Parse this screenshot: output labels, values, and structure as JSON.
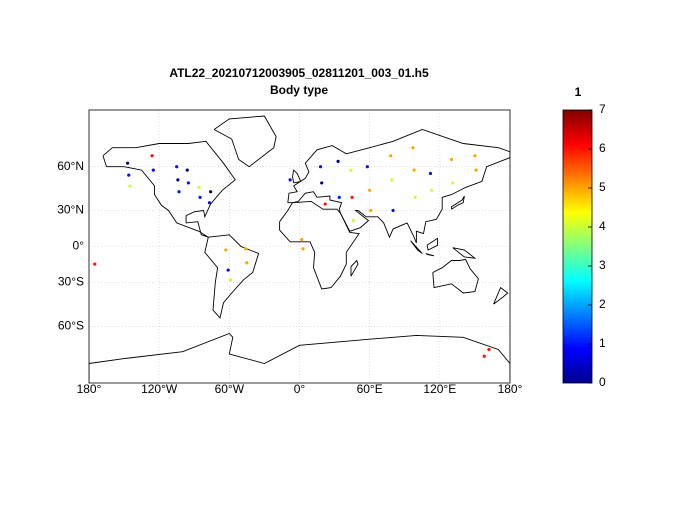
{
  "chart_data": {
    "type": "scatter",
    "title": "ATL22_20210712003905_02811201_003_01.h5",
    "subtitle": "Body type",
    "xlim": [
      -180,
      180
    ],
    "ylim": [
      -85,
      85
    ],
    "xticks": [
      {
        "value": -180,
        "label": "180°"
      },
      {
        "value": -120,
        "label": "120°W"
      },
      {
        "value": -60,
        "label": "60°W"
      },
      {
        "value": 0,
        "label": "0°"
      },
      {
        "value": 60,
        "label": "60°E"
      },
      {
        "value": 120,
        "label": "120°E"
      },
      {
        "value": 180,
        "label": "180°"
      }
    ],
    "yticks": [
      {
        "value": -60,
        "label": "60°S"
      },
      {
        "value": -30,
        "label": "30°S"
      },
      {
        "value": 0,
        "label": "0°"
      },
      {
        "value": 30,
        "label": "30°N"
      },
      {
        "value": 60,
        "label": "60°N"
      }
    ],
    "grid": true,
    "colorbar": {
      "title": "1",
      "clim": [
        0,
        7
      ],
      "ticks": [
        0,
        1,
        2,
        3,
        4,
        5,
        6,
        7
      ],
      "colormap": "jet"
    },
    "x": [
      -147,
      -146,
      -145,
      -126,
      -125,
      -105,
      -104,
      -103,
      -96,
      -95,
      -86,
      -85,
      -76,
      -77,
      -63,
      -61,
      -59,
      -46,
      -45,
      -8,
      2,
      3,
      18,
      19,
      22,
      33,
      34,
      44,
      45,
      46,
      58,
      60,
      61,
      78,
      79,
      80,
      97,
      98,
      99,
      112,
      113,
      130,
      131,
      150,
      151,
      -175,
      158,
      162
    ],
    "y": [
      62,
      55,
      48,
      66,
      58,
      60,
      52,
      44,
      58,
      50,
      47,
      40,
      44,
      36,
      -3,
      -20,
      -28,
      -2,
      -14,
      52,
      6,
      -2,
      60,
      50,
      35,
      63,
      40,
      58,
      40,
      22,
      60,
      45,
      30,
      66,
      52,
      30,
      70,
      58,
      40,
      56,
      45,
      64,
      50,
      66,
      58,
      -15,
      -75,
      -72
    ],
    "values": [
      0,
      1,
      4,
      6,
      1,
      1,
      0,
      1,
      0,
      1,
      4,
      1,
      0,
      1,
      5,
      1,
      4,
      5,
      5,
      1,
      5,
      5,
      1,
      0,
      6,
      0,
      1,
      4,
      6,
      4,
      1,
      5,
      5,
      5,
      4,
      1,
      5,
      5,
      4,
      1,
      4,
      5,
      4,
      5,
      5,
      6,
      6,
      6
    ]
  }
}
